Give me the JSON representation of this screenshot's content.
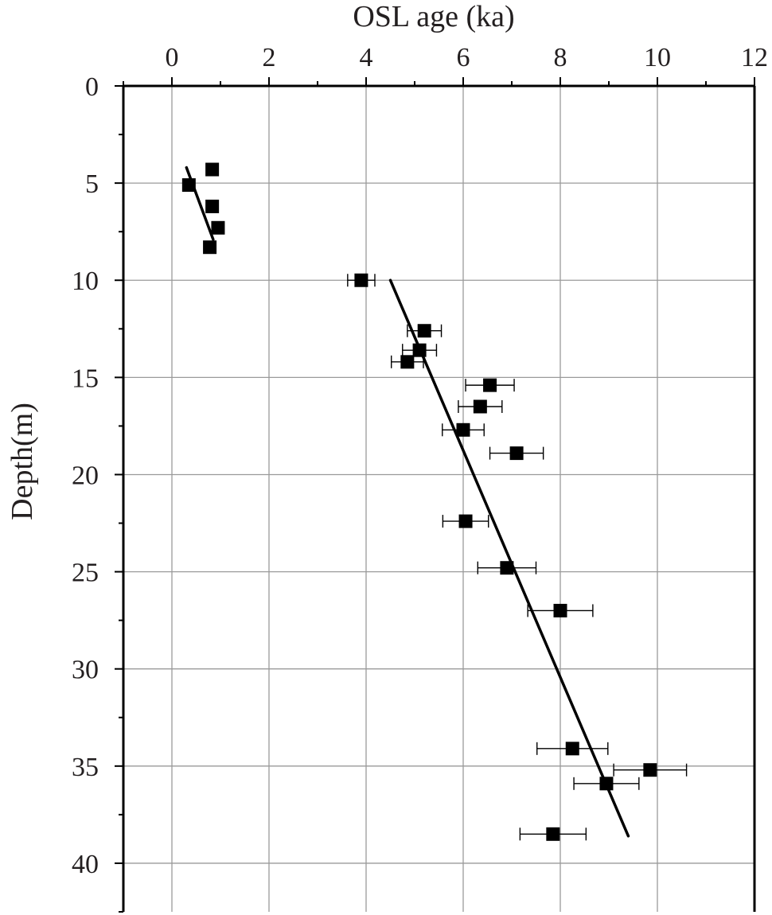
{
  "chart_data": {
    "type": "scatter",
    "xlabel": "OSL age (ka)",
    "ylabel": "Depth(m)",
    "x_axis_position": "top",
    "y_axis_direction": "increasing-downward",
    "xlim": [
      -1,
      12
    ],
    "ylim": [
      0,
      42.5
    ],
    "x_ticks": [
      0,
      2,
      4,
      6,
      8,
      10,
      12
    ],
    "y_ticks": [
      0,
      5,
      10,
      15,
      20,
      25,
      30,
      35,
      40
    ],
    "grid": true,
    "legend": "none",
    "points": [
      {
        "age": 0.83,
        "depth": 4.3,
        "err": 0.08
      },
      {
        "age": 0.35,
        "depth": 5.1,
        "err": 0.08
      },
      {
        "age": 0.83,
        "depth": 6.2,
        "err": 0.08
      },
      {
        "age": 0.95,
        "depth": 7.3,
        "err": 0.08
      },
      {
        "age": 0.78,
        "depth": 8.3,
        "err": 0.08
      },
      {
        "age": 3.9,
        "depth": 10.0,
        "err": 0.28
      },
      {
        "age": 5.2,
        "depth": 12.6,
        "err": 0.35
      },
      {
        "age": 5.1,
        "depth": 13.6,
        "err": 0.35
      },
      {
        "age": 4.85,
        "depth": 14.2,
        "err": 0.33
      },
      {
        "age": 6.55,
        "depth": 15.4,
        "err": 0.5
      },
      {
        "age": 6.35,
        "depth": 16.5,
        "err": 0.45
      },
      {
        "age": 6.0,
        "depth": 17.7,
        "err": 0.43
      },
      {
        "age": 7.1,
        "depth": 18.9,
        "err": 0.55
      },
      {
        "age": 6.05,
        "depth": 22.4,
        "err": 0.47
      },
      {
        "age": 6.9,
        "depth": 24.8,
        "err": 0.6
      },
      {
        "age": 8.0,
        "depth": 27.0,
        "err": 0.67
      },
      {
        "age": 8.25,
        "depth": 34.1,
        "err": 0.73
      },
      {
        "age": 9.85,
        "depth": 35.2,
        "err": 0.75
      },
      {
        "age": 8.95,
        "depth": 35.9,
        "err": 0.67
      },
      {
        "age": 7.85,
        "depth": 38.5,
        "err": 0.68
      }
    ],
    "fit_lines": [
      {
        "from": {
          "age": 0.3,
          "depth": 4.2
        },
        "to": {
          "age": 0.85,
          "depth": 7.9
        }
      },
      {
        "from": {
          "age": 4.5,
          "depth": 10.0
        },
        "to": {
          "age": 9.4,
          "depth": 38.6
        }
      }
    ],
    "colors": {
      "marker": "#000000",
      "axis": "#000000",
      "grid": "#9a9a9a",
      "text": "#231f20"
    }
  }
}
